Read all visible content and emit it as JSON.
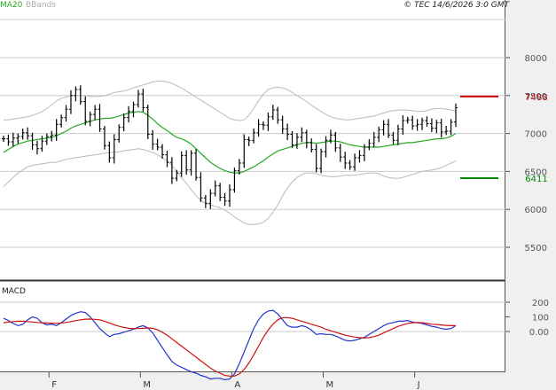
{
  "legend": {
    "ma": "MA20",
    "bb": "BBands"
  },
  "copyright": "© TEC 14/6/2026 3:0 GMT",
  "macd_label": "MACD",
  "colors": {
    "candle": "#000000",
    "ma": "#22aa22",
    "bbands": "#bbbbbb",
    "resistance": "#cc0000",
    "support": "#008800",
    "macd": "#2233cc",
    "signal": "#cc1111",
    "grid": "#cccccc",
    "panel_bg": "#ffffff",
    "right_bg": "#f0f0f0"
  },
  "chart_data": [
    {
      "type": "candlestick",
      "title": "",
      "y_ticks": [
        "8000",
        "7500",
        "7000",
        "6500",
        "6000",
        "5500"
      ],
      "y_tick_values": [
        8000,
        7500,
        7000,
        6500,
        6000,
        5500
      ],
      "ylim": [
        5300,
        8300
      ],
      "x_labels": [
        "F",
        "M",
        "A",
        "M",
        "J"
      ],
      "x_label_index": [
        10,
        29,
        48,
        67,
        86
      ],
      "n_bars": 95,
      "grid": true,
      "levels": [
        {
          "name": "resistance",
          "value": 7488,
          "label": "7488"
        },
        {
          "name": "support",
          "value": 6411,
          "label": "6411"
        }
      ],
      "close": [
        6930,
        6890,
        6940,
        6960,
        7010,
        6970,
        6850,
        6800,
        6900,
        6960,
        6980,
        7120,
        7210,
        7320,
        7500,
        7580,
        7420,
        7160,
        7250,
        7320,
        7060,
        6840,
        6680,
        6920,
        7080,
        7210,
        7290,
        7380,
        7520,
        7340,
        6990,
        6860,
        6820,
        6720,
        6620,
        6410,
        6480,
        6710,
        6520,
        6740,
        6420,
        6150,
        6080,
        6210,
        6310,
        6160,
        6110,
        6260,
        6510,
        6610,
        6920,
        6910,
        7010,
        7120,
        7110,
        7220,
        7310,
        7180,
        7060,
        6990,
        6850,
        6950,
        7010,
        6880,
        6790,
        6540,
        6760,
        6910,
        6980,
        6810,
        6690,
        6610,
        6560,
        6680,
        6710,
        6820,
        6870,
        6950,
        7050,
        7120,
        6980,
        6910,
        7060,
        7170,
        7180,
        7100,
        7120,
        7170,
        7130,
        7070,
        7140,
        7020,
        7030,
        7150,
        7340
      ],
      "ma20": [
        6750,
        6790,
        6830,
        6860,
        6880,
        6900,
        6910,
        6920,
        6930,
        6940,
        6950,
        6970,
        7000,
        7030,
        7070,
        7100,
        7120,
        7140,
        7160,
        7180,
        7190,
        7200,
        7200,
        7210,
        7230,
        7250,
        7270,
        7280,
        7290,
        7280,
        7240,
        7190,
        7130,
        7080,
        7040,
        6990,
        6950,
        6930,
        6900,
        6860,
        6800,
        6740,
        6680,
        6620,
        6580,
        6540,
        6510,
        6490,
        6480,
        6480,
        6500,
        6530,
        6560,
        6600,
        6640,
        6690,
        6730,
        6770,
        6790,
        6810,
        6830,
        6850,
        6870,
        6880,
        6880,
        6870,
        6880,
        6890,
        6900,
        6900,
        6890,
        6870,
        6850,
        6840,
        6830,
        6820,
        6820,
        6820,
        6820,
        6830,
        6840,
        6850,
        6860,
        6870,
        6880,
        6880,
        6890,
        6900,
        6910,
        6920,
        6930,
        6930,
        6940,
        6960,
        7000
      ],
      "bb_upper": [
        7180,
        7180,
        7190,
        7200,
        7210,
        7220,
        7240,
        7260,
        7290,
        7330,
        7380,
        7430,
        7460,
        7480,
        7500,
        7500,
        7500,
        7500,
        7490,
        7490,
        7490,
        7500,
        7520,
        7540,
        7550,
        7560,
        7580,
        7600,
        7620,
        7640,
        7660,
        7680,
        7690,
        7690,
        7680,
        7660,
        7630,
        7600,
        7560,
        7520,
        7480,
        7440,
        7400,
        7360,
        7320,
        7280,
        7240,
        7200,
        7180,
        7170,
        7180,
        7240,
        7330,
        7430,
        7520,
        7580,
        7600,
        7610,
        7600,
        7580,
        7540,
        7500,
        7460,
        7420,
        7370,
        7330,
        7290,
        7250,
        7220,
        7200,
        7190,
        7180,
        7180,
        7190,
        7200,
        7210,
        7220,
        7230,
        7250,
        7270,
        7290,
        7300,
        7310,
        7310,
        7310,
        7300,
        7290,
        7290,
        7300,
        7320,
        7330,
        7330,
        7320,
        7310,
        7300
      ],
      "bb_lower": [
        6300,
        6360,
        6420,
        6480,
        6520,
        6560,
        6580,
        6590,
        6600,
        6610,
        6620,
        6620,
        6640,
        6660,
        6670,
        6680,
        6690,
        6700,
        6710,
        6720,
        6730,
        6740,
        6750,
        6750,
        6760,
        6770,
        6780,
        6790,
        6800,
        6790,
        6770,
        6750,
        6720,
        6680,
        6640,
        6580,
        6500,
        6420,
        6340,
        6260,
        6180,
        6120,
        6080,
        6060,
        6040,
        6020,
        5990,
        5950,
        5900,
        5860,
        5820,
        5800,
        5800,
        5810,
        5830,
        5880,
        5960,
        6060,
        6180,
        6280,
        6360,
        6420,
        6460,
        6480,
        6480,
        6470,
        6450,
        6440,
        6430,
        6430,
        6440,
        6450,
        6450,
        6450,
        6460,
        6470,
        6480,
        6480,
        6470,
        6440,
        6420,
        6410,
        6410,
        6420,
        6440,
        6460,
        6480,
        6500,
        6510,
        6520,
        6530,
        6550,
        6580,
        6610,
        6640
      ]
    },
    {
      "type": "line",
      "title": "MACD",
      "y_ticks": [
        "200",
        "100",
        "0.00"
      ],
      "y_tick_values": [
        200,
        100,
        0
      ],
      "ylim": [
        -400,
        270
      ],
      "series": [
        {
          "name": "MACD",
          "values": [
            90,
            75,
            55,
            40,
            50,
            80,
            100,
            90,
            60,
            45,
            50,
            40,
            60,
            85,
            110,
            125,
            135,
            130,
            100,
            60,
            20,
            -10,
            -35,
            -20,
            -15,
            -5,
            5,
            15,
            30,
            40,
            25,
            -10,
            -60,
            -110,
            -160,
            -205,
            -230,
            -245,
            -260,
            -275,
            -285,
            -300,
            -310,
            -325,
            -320,
            -320,
            -330,
            -325,
            -290,
            -220,
            -140,
            -60,
            20,
            80,
            120,
            140,
            145,
            120,
            80,
            40,
            30,
            30,
            40,
            30,
            10,
            -20,
            -15,
            -20,
            -20,
            -30,
            -45,
            -60,
            -65,
            -60,
            -50,
            -40,
            -20,
            0,
            20,
            40,
            55,
            60,
            70,
            70,
            75,
            65,
            60,
            55,
            45,
            35,
            30,
            20,
            15,
            20,
            40
          ]
        },
        {
          "name": "Signal",
          "values": [
            60,
            65,
            68,
            70,
            70,
            68,
            65,
            62,
            60,
            58,
            57,
            56,
            58,
            62,
            68,
            74,
            80,
            84,
            85,
            83,
            80,
            70,
            58,
            46,
            36,
            28,
            22,
            20,
            20,
            22,
            24,
            22,
            12,
            -5,
            -25,
            -50,
            -75,
            -100,
            -125,
            -150,
            -175,
            -200,
            -225,
            -250,
            -270,
            -285,
            -300,
            -305,
            -305,
            -290,
            -260,
            -215,
            -160,
            -100,
            -40,
            10,
            50,
            80,
            95,
            95,
            90,
            80,
            70,
            60,
            50,
            40,
            30,
            15,
            5,
            -5,
            -15,
            -25,
            -32,
            -38,
            -42,
            -45,
            -42,
            -35,
            -25,
            -10,
            5,
            20,
            35,
            45,
            55,
            60,
            62,
            60,
            55,
            50,
            48,
            45,
            42,
            40,
            40
          ]
        }
      ]
    }
  ]
}
